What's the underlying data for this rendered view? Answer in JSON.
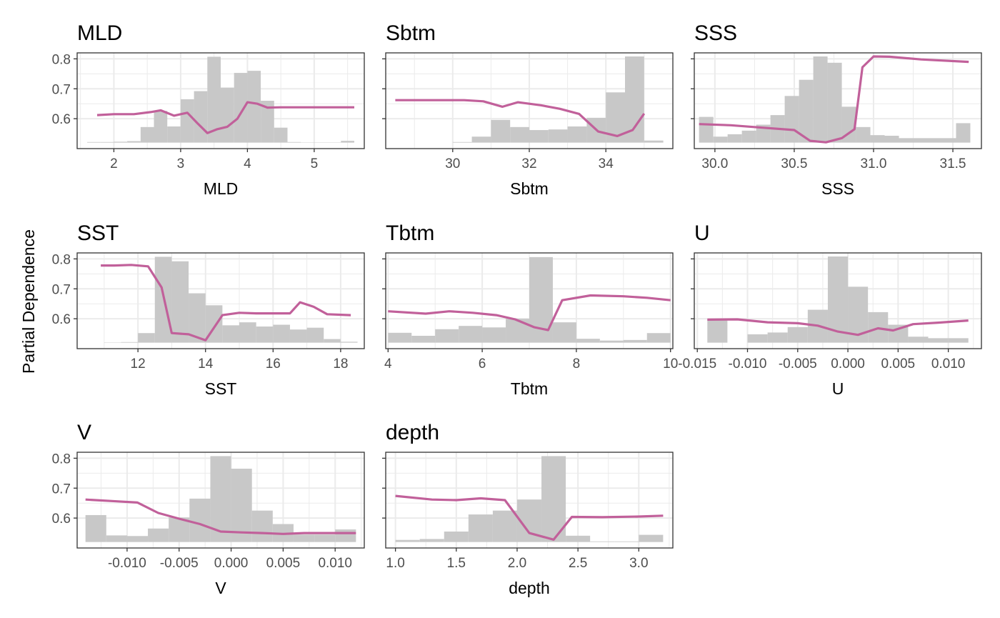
{
  "figure": {
    "ylabel": "Partial Dependence",
    "y_ticks": [
      0.6,
      0.7,
      0.8
    ],
    "ylim": [
      0.5,
      0.82
    ],
    "colors": {
      "line": "#C1609A",
      "bars": "#C8C8C8",
      "grid": "#EBEBEB",
      "panel_border": "#333333"
    },
    "grid": true,
    "legend": "none"
  },
  "chart_data": [
    {
      "type": "line",
      "title": "MLD",
      "xlabel": "MLD",
      "xlim": [
        1.45,
        5.75
      ],
      "x_ticks": [
        2,
        3,
        4,
        5
      ],
      "x_tick_labels": [
        "2",
        "3",
        "4",
        "5"
      ],
      "histogram": {
        "edges": [
          1.6,
          1.8,
          2.0,
          2.2,
          2.4,
          2.6,
          2.8,
          3.0,
          3.2,
          3.4,
          3.6,
          3.8,
          4.0,
          4.2,
          4.4,
          4.6,
          4.8,
          5.0,
          5.2,
          5.4,
          5.6
        ],
        "heights": [
          0.522,
          0.522,
          0.523,
          0.525,
          0.572,
          0.626,
          0.574,
          0.665,
          0.692,
          0.807,
          0.704,
          0.753,
          0.76,
          0.66,
          0.57,
          0.522,
          0.521,
          0.521,
          0.521,
          0.526
        ]
      },
      "series": [
        {
          "x": [
            1.75,
            2.0,
            2.3,
            2.55,
            2.7,
            2.9,
            3.1,
            3.25,
            3.4,
            3.55,
            3.7,
            3.85,
            4.0,
            4.15,
            4.3,
            4.5,
            5.0,
            5.6
          ],
          "y": [
            0.612,
            0.615,
            0.615,
            0.622,
            0.628,
            0.61,
            0.62,
            0.585,
            0.552,
            0.565,
            0.573,
            0.6,
            0.655,
            0.65,
            0.637,
            0.638,
            0.638,
            0.638
          ]
        }
      ]
    },
    {
      "type": "line",
      "title": "Sbtm",
      "xlabel": "Sbtm",
      "xlim": [
        28.25,
        35.75
      ],
      "x_ticks": [
        30,
        32,
        34
      ],
      "x_tick_labels": [
        "30",
        "32",
        "34"
      ],
      "histogram": {
        "edges": [
          28.5,
          29.0,
          29.5,
          30.0,
          30.5,
          31.0,
          31.5,
          32.0,
          32.5,
          33.0,
          33.5,
          34.0,
          34.5,
          35.0,
          35.5
        ],
        "heights": [
          0.52,
          0.52,
          0.52,
          0.522,
          0.54,
          0.596,
          0.572,
          0.562,
          0.564,
          0.574,
          0.603,
          0.688,
          0.808,
          0.527
        ]
      },
      "series": [
        {
          "x": [
            28.5,
            29.5,
            30.3,
            30.8,
            31.3,
            31.7,
            32.3,
            32.8,
            33.3,
            33.8,
            34.3,
            34.7,
            35.0
          ],
          "y": [
            0.662,
            0.662,
            0.662,
            0.658,
            0.64,
            0.655,
            0.645,
            0.633,
            0.616,
            0.557,
            0.542,
            0.562,
            0.617
          ]
        }
      ]
    },
    {
      "type": "line",
      "title": "SSS",
      "xlabel": "SSS",
      "xlim": [
        29.87,
        31.68
      ],
      "x_ticks": [
        30.0,
        30.5,
        31.0,
        31.5
      ],
      "x_tick_labels": [
        "30.0",
        "30.5",
        "31.0",
        "31.5"
      ],
      "histogram": {
        "edges": [
          29.9,
          29.99,
          30.08,
          30.17,
          30.26,
          30.35,
          30.44,
          30.53,
          30.62,
          30.71,
          30.8,
          30.89,
          30.98,
          31.07,
          31.16,
          31.25,
          31.34,
          31.43,
          31.52,
          31.61
        ],
        "heights": [
          0.606,
          0.54,
          0.548,
          0.56,
          0.58,
          0.612,
          0.676,
          0.73,
          0.808,
          0.787,
          0.64,
          0.572,
          0.545,
          0.543,
          0.535,
          0.535,
          0.535,
          0.535,
          0.585
        ]
      },
      "series": [
        {
          "x": [
            29.9,
            30.1,
            30.3,
            30.5,
            30.6,
            30.7,
            30.8,
            30.88,
            30.93,
            31.0,
            31.1,
            31.3,
            31.6
          ],
          "y": [
            0.582,
            0.578,
            0.57,
            0.562,
            0.526,
            0.521,
            0.535,
            0.565,
            0.772,
            0.808,
            0.807,
            0.798,
            0.79
          ]
        }
      ]
    },
    {
      "type": "line",
      "title": "SST",
      "xlabel": "SST",
      "xlim": [
        10.2,
        18.7
      ],
      "x_ticks": [
        12,
        14,
        16,
        18
      ],
      "x_tick_labels": [
        "12",
        "14",
        "16",
        "18"
      ],
      "histogram": {
        "edges": [
          10.5,
          11.0,
          11.5,
          12.0,
          12.5,
          13.0,
          13.5,
          14.0,
          14.5,
          15.0,
          15.5,
          16.0,
          16.5,
          17.0,
          17.5,
          18.0,
          18.5
        ],
        "heights": [
          0.52,
          0.521,
          0.522,
          0.552,
          0.807,
          0.792,
          0.685,
          0.645,
          0.578,
          0.588,
          0.574,
          0.58,
          0.564,
          0.57,
          0.532,
          0.523
        ]
      },
      "series": [
        {
          "x": [
            10.9,
            11.3,
            11.8,
            12.3,
            12.7,
            13.0,
            13.5,
            14.0,
            14.5,
            15.0,
            15.5,
            16.0,
            16.5,
            16.8,
            17.2,
            17.6,
            18.3
          ],
          "y": [
            0.778,
            0.778,
            0.78,
            0.775,
            0.705,
            0.552,
            0.548,
            0.528,
            0.612,
            0.62,
            0.618,
            0.618,
            0.618,
            0.655,
            0.64,
            0.615,
            0.612
          ]
        }
      ]
    },
    {
      "type": "line",
      "title": "Tbtm",
      "xlabel": "Tbtm",
      "xlim": [
        3.95,
        10.05
      ],
      "x_ticks": [
        4,
        6,
        8,
        10
      ],
      "x_tick_labels": [
        "4",
        "6",
        "8",
        "10"
      ],
      "histogram": {
        "edges": [
          4.0,
          4.5,
          5.0,
          5.5,
          6.0,
          6.5,
          7.0,
          7.5,
          8.0,
          8.5,
          9.0,
          9.5,
          10.0
        ],
        "heights": [
          0.553,
          0.543,
          0.565,
          0.576,
          0.571,
          0.6,
          0.806,
          0.588,
          0.533,
          0.527,
          0.529,
          0.552
        ]
      },
      "series": [
        {
          "x": [
            4.0,
            4.8,
            5.3,
            5.8,
            6.3,
            6.7,
            7.1,
            7.4,
            7.7,
            8.3,
            9.0,
            9.5,
            10.0
          ],
          "y": [
            0.625,
            0.617,
            0.625,
            0.62,
            0.612,
            0.598,
            0.572,
            0.562,
            0.662,
            0.678,
            0.675,
            0.67,
            0.662
          ]
        }
      ]
    },
    {
      "type": "line",
      "title": "U",
      "xlabel": "U",
      "xlim": [
        -0.0153,
        0.0133
      ],
      "x_ticks": [
        -0.015,
        -0.01,
        -0.005,
        0.0,
        0.005,
        0.01
      ],
      "x_tick_labels": [
        "-0.015",
        "-0.010",
        "-0.005",
        "0.000",
        "0.005",
        "0.010"
      ],
      "histogram": {
        "edges": [
          -0.014,
          -0.012,
          -0.01,
          -0.008,
          -0.006,
          -0.004,
          -0.002,
          0.0,
          0.002,
          0.004,
          0.006,
          0.008,
          0.01,
          0.012
        ],
        "heights": [
          0.598,
          0.52,
          0.548,
          0.554,
          0.572,
          0.63,
          0.808,
          0.707,
          0.622,
          0.58,
          0.54,
          0.535,
          0.535
        ]
      },
      "series": [
        {
          "x": [
            -0.014,
            -0.011,
            -0.008,
            -0.005,
            -0.003,
            -0.001,
            0.001,
            0.003,
            0.0045,
            0.0065,
            0.009,
            0.012
          ],
          "y": [
            0.597,
            0.598,
            0.588,
            0.585,
            0.577,
            0.557,
            0.546,
            0.568,
            0.561,
            0.582,
            0.587,
            0.594
          ]
        }
      ]
    },
    {
      "type": "line",
      "title": "V",
      "xlabel": "V",
      "xlim": [
        -0.0148,
        0.0128
      ],
      "x_ticks": [
        -0.015,
        -0.01,
        -0.005,
        0.0,
        0.005,
        0.01
      ],
      "x_tick_labels": [
        "-0.015",
        "-0.010",
        "-0.005",
        "0.000",
        "0.005",
        "0.010"
      ],
      "histogram": {
        "edges": [
          -0.014,
          -0.012,
          -0.01,
          -0.008,
          -0.006,
          -0.004,
          -0.002,
          0.0,
          0.002,
          0.004,
          0.006,
          0.008,
          0.01,
          0.012
        ],
        "heights": [
          0.61,
          0.542,
          0.54,
          0.565,
          0.602,
          0.665,
          0.807,
          0.765,
          0.625,
          0.58,
          0.545,
          0.545,
          0.562
        ]
      },
      "series": [
        {
          "x": [
            -0.014,
            -0.011,
            -0.009,
            -0.007,
            -0.005,
            -0.003,
            -0.001,
            0.001,
            0.003,
            0.005,
            0.007,
            0.009,
            0.012
          ],
          "y": [
            0.662,
            0.656,
            0.652,
            0.617,
            0.598,
            0.58,
            0.555,
            0.552,
            0.55,
            0.547,
            0.55,
            0.55,
            0.55
          ]
        }
      ]
    },
    {
      "type": "line",
      "title": "depth",
      "xlabel": "depth",
      "xlim": [
        0.92,
        3.28
      ],
      "x_ticks": [
        1.0,
        1.5,
        2.0,
        2.5,
        3.0
      ],
      "x_tick_labels": [
        "1.0",
        "1.5",
        "2.0",
        "2.5",
        "3.0"
      ],
      "histogram": {
        "edges": [
          1.0,
          1.2,
          1.4,
          1.6,
          1.8,
          2.0,
          2.2,
          2.4,
          2.6,
          2.8,
          3.0,
          3.2
        ],
        "heights": [
          0.527,
          0.53,
          0.555,
          0.612,
          0.625,
          0.662,
          0.807,
          0.541,
          0.522,
          0.522,
          0.544
        ]
      },
      "series": [
        {
          "x": [
            1.0,
            1.3,
            1.5,
            1.7,
            1.9,
            2.1,
            2.3,
            2.45,
            2.7,
            3.0,
            3.2
          ],
          "y": [
            0.674,
            0.662,
            0.66,
            0.666,
            0.66,
            0.55,
            0.528,
            0.604,
            0.603,
            0.605,
            0.608
          ]
        }
      ]
    }
  ]
}
